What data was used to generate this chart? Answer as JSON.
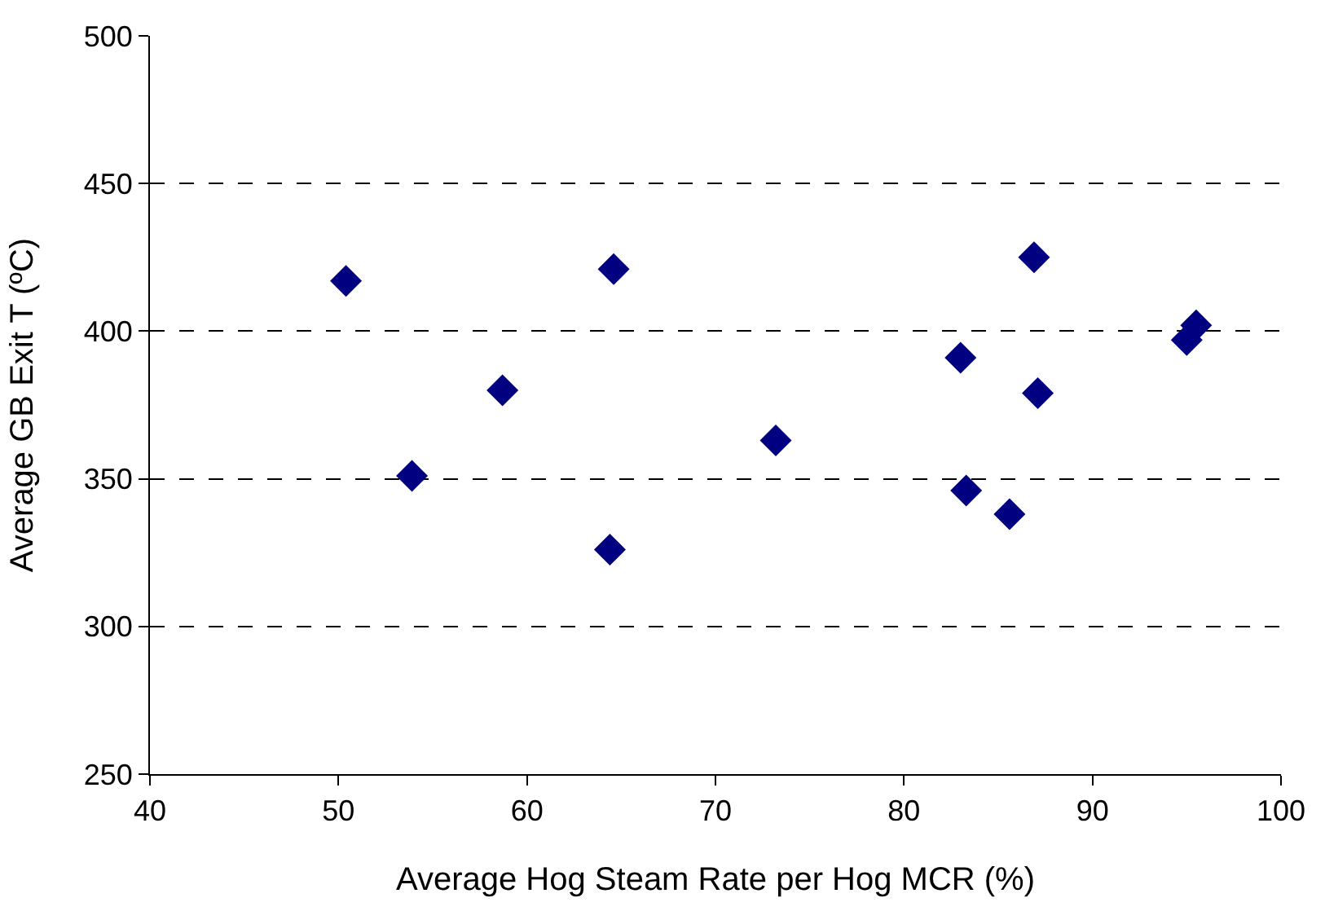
{
  "chart_data": {
    "type": "scatter",
    "xlabel": "Average Hog Steam Rate per Hog MCR (%)",
    "ylabel": "Average GB Exit T (ºC)",
    "x": [
      50.4,
      53.9,
      58.7,
      64.4,
      64.6,
      73.2,
      83.0,
      83.3,
      85.6,
      86.9,
      87.1,
      95.0,
      95.5
    ],
    "series": [
      {
        "color": "#000080",
        "values": [
          417,
          351,
          380,
          326,
          421,
          363,
          391,
          346,
          338,
          425,
          379,
          397,
          402
        ]
      }
    ],
    "xlim": [
      40,
      100
    ],
    "xticks": [
      40,
      50,
      60,
      70,
      80,
      90,
      100
    ],
    "ylim": [
      250,
      500
    ],
    "yticks": [
      250,
      300,
      350,
      400,
      450,
      500
    ],
    "grid": "y",
    "marker": "diamond"
  }
}
